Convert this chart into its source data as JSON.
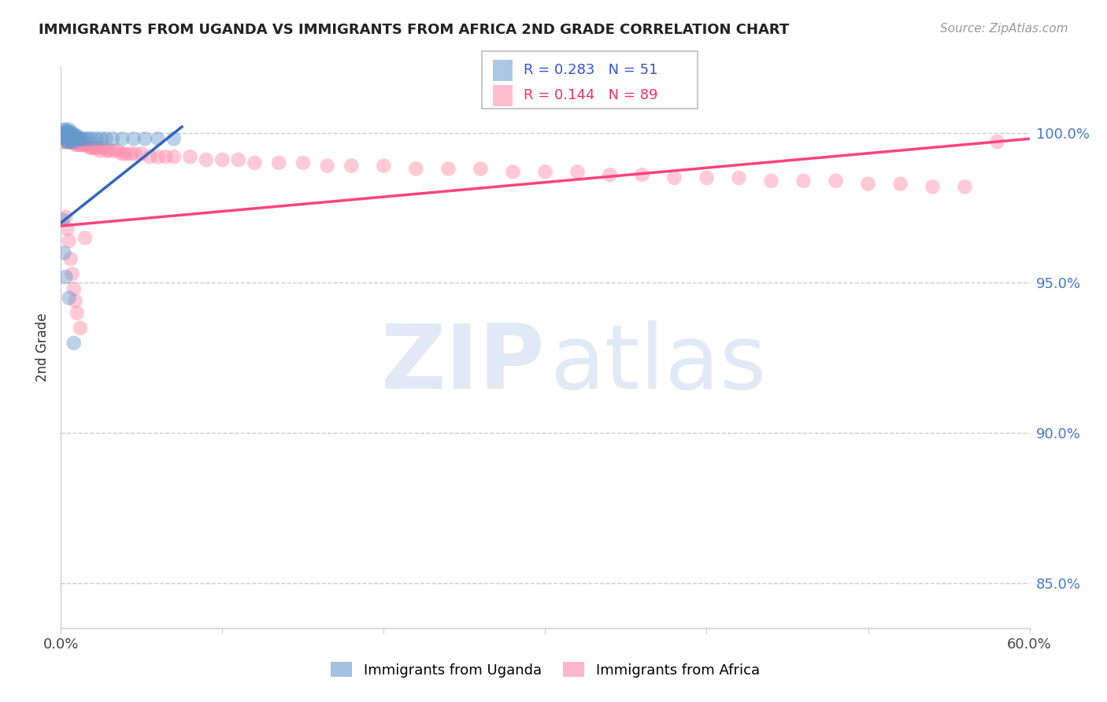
{
  "title": "IMMIGRANTS FROM UGANDA VS IMMIGRANTS FROM AFRICA 2ND GRADE CORRELATION CHART",
  "source": "Source: ZipAtlas.com",
  "ylabel_label": "2nd Grade",
  "xlim": [
    0.0,
    0.6
  ],
  "ylim": [
    0.835,
    1.022
  ],
  "x_tick_positions": [
    0.0,
    0.1,
    0.2,
    0.3,
    0.4,
    0.5,
    0.6
  ],
  "x_tick_labels": [
    "0.0%",
    "",
    "",
    "",
    "",
    "",
    "60.0%"
  ],
  "y_tick_positions": [
    0.85,
    0.9,
    0.95,
    1.0
  ],
  "y_tick_labels": [
    "85.0%",
    "90.0%",
    "95.0%",
    "100.0%"
  ],
  "blue_R": 0.283,
  "blue_N": 51,
  "pink_R": 0.144,
  "pink_N": 89,
  "blue_color": "#6699CC",
  "pink_color": "#FF88AA",
  "blue_line_color": "#3366BB",
  "pink_line_color": "#FF4477",
  "legend_label_blue": "Immigrants from Uganda",
  "legend_label_pink": "Immigrants from Africa",
  "blue_scatter_x": [
    0.001,
    0.002,
    0.002,
    0.002,
    0.003,
    0.003,
    0.003,
    0.003,
    0.004,
    0.004,
    0.004,
    0.004,
    0.005,
    0.005,
    0.005,
    0.005,
    0.005,
    0.006,
    0.006,
    0.006,
    0.006,
    0.007,
    0.007,
    0.007,
    0.008,
    0.008,
    0.008,
    0.009,
    0.009,
    0.01,
    0.01,
    0.011,
    0.012,
    0.013,
    0.015,
    0.017,
    0.019,
    0.022,
    0.025,
    0.028,
    0.032,
    0.038,
    0.045,
    0.052,
    0.06,
    0.07,
    0.001,
    0.002,
    0.003,
    0.005,
    0.008
  ],
  "blue_scatter_y": [
    1.0,
    1.001,
    0.999,
    0.998,
    1.0,
    1.001,
    0.999,
    0.998,
    1.0,
    0.999,
    0.998,
    0.997,
    1.001,
    1.0,
    0.999,
    0.998,
    0.997,
    1.0,
    0.999,
    0.998,
    0.997,
    1.0,
    0.999,
    0.998,
    0.999,
    0.998,
    0.997,
    0.999,
    0.998,
    0.999,
    0.998,
    0.998,
    0.998,
    0.998,
    0.998,
    0.998,
    0.998,
    0.998,
    0.998,
    0.998,
    0.998,
    0.998,
    0.998,
    0.998,
    0.998,
    0.998,
    0.971,
    0.96,
    0.952,
    0.945,
    0.93
  ],
  "pink_scatter_x": [
    0.001,
    0.001,
    0.002,
    0.002,
    0.002,
    0.003,
    0.003,
    0.003,
    0.004,
    0.004,
    0.004,
    0.005,
    0.005,
    0.005,
    0.006,
    0.006,
    0.006,
    0.007,
    0.007,
    0.008,
    0.008,
    0.009,
    0.009,
    0.01,
    0.01,
    0.011,
    0.012,
    0.013,
    0.014,
    0.015,
    0.016,
    0.018,
    0.019,
    0.021,
    0.022,
    0.024,
    0.026,
    0.028,
    0.03,
    0.033,
    0.035,
    0.038,
    0.04,
    0.043,
    0.046,
    0.05,
    0.055,
    0.06,
    0.065,
    0.07,
    0.08,
    0.09,
    0.1,
    0.11,
    0.12,
    0.135,
    0.15,
    0.165,
    0.18,
    0.2,
    0.22,
    0.24,
    0.26,
    0.28,
    0.3,
    0.32,
    0.34,
    0.36,
    0.38,
    0.4,
    0.42,
    0.44,
    0.46,
    0.48,
    0.5,
    0.52,
    0.54,
    0.56,
    0.003,
    0.004,
    0.005,
    0.006,
    0.007,
    0.008,
    0.009,
    0.01,
    0.012,
    0.015,
    0.58
  ],
  "pink_scatter_y": [
    0.998,
    0.997,
    0.999,
    0.998,
    0.997,
    0.999,
    0.998,
    0.997,
    0.999,
    0.998,
    0.997,
    0.999,
    0.998,
    0.997,
    0.999,
    0.998,
    0.997,
    0.998,
    0.997,
    0.998,
    0.997,
    0.997,
    0.996,
    0.997,
    0.996,
    0.997,
    0.996,
    0.996,
    0.996,
    0.996,
    0.996,
    0.995,
    0.995,
    0.995,
    0.995,
    0.994,
    0.995,
    0.994,
    0.994,
    0.994,
    0.994,
    0.993,
    0.993,
    0.993,
    0.993,
    0.993,
    0.992,
    0.992,
    0.992,
    0.992,
    0.992,
    0.991,
    0.991,
    0.991,
    0.99,
    0.99,
    0.99,
    0.989,
    0.989,
    0.989,
    0.988,
    0.988,
    0.988,
    0.987,
    0.987,
    0.987,
    0.986,
    0.986,
    0.985,
    0.985,
    0.985,
    0.984,
    0.984,
    0.984,
    0.983,
    0.983,
    0.982,
    0.982,
    0.972,
    0.968,
    0.964,
    0.958,
    0.953,
    0.948,
    0.944,
    0.94,
    0.935,
    0.965,
    0.997
  ],
  "blue_trend_x0": 0.0,
  "blue_trend_x1": 0.075,
  "blue_trend_y0": 0.97,
  "blue_trend_y1": 1.002,
  "pink_trend_x0": 0.0,
  "pink_trend_x1": 0.6,
  "pink_trend_y0": 0.969,
  "pink_trend_y1": 0.998
}
